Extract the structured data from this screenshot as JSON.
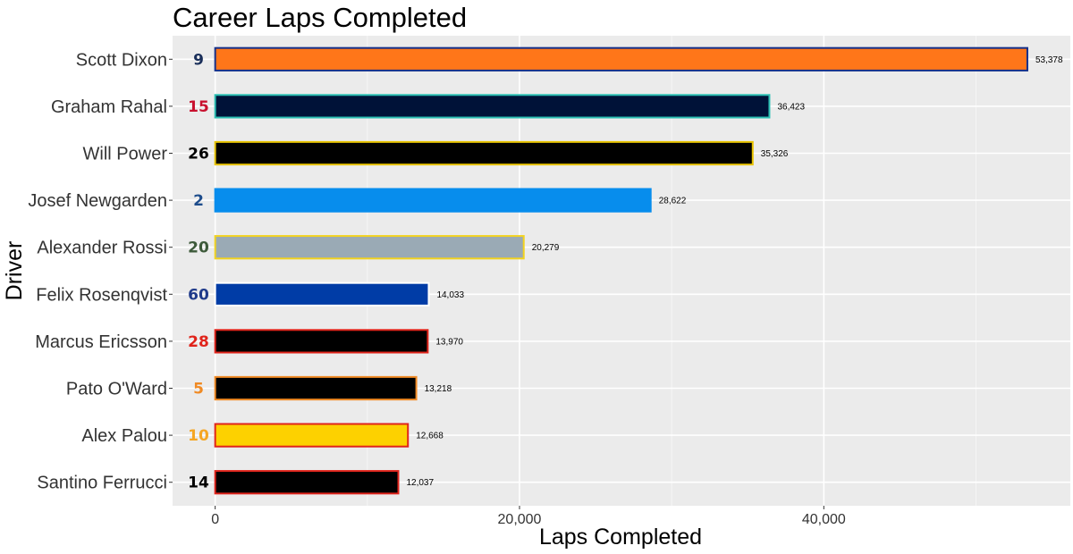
{
  "chart_data": {
    "type": "bar",
    "orientation": "horizontal",
    "title": "Career Laps Completed",
    "xlabel": "Laps Completed",
    "ylabel": "Driver",
    "xlim": [
      -2800,
      56200
    ],
    "x_ticks": [
      0,
      20000,
      40000
    ],
    "x_tick_labels": [
      "0",
      "20,000",
      "40,000"
    ],
    "grid": true,
    "categories": [
      "Scott Dixon",
      "Graham Rahal",
      "Will Power",
      "Josef Newgarden",
      "Alexander Rossi",
      "Felix Rosenqvist",
      "Marcus Ericsson",
      "Pato O'Ward",
      "Alex Palou",
      "Santino Ferrucci"
    ],
    "values": [
      53378,
      36423,
      35326,
      28622,
      20279,
      14033,
      13970,
      13218,
      12668,
      12037
    ],
    "value_labels": [
      "53,378",
      "36,423",
      "35,326",
      "28,622",
      "20,279",
      "14,033",
      "13,970",
      "13,218",
      "12,668",
      "12,037"
    ],
    "car_numbers": [
      "9",
      "15",
      "26",
      "2",
      "20",
      "60",
      "28",
      "5",
      "10",
      "14"
    ],
    "car_number_colors": [
      "#1a2f5a",
      "#c8102e",
      "#000000",
      "#1e4d8c",
      "#3d5a3a",
      "#1f3a8a",
      "#e0241b",
      "#f08a24",
      "#f5a623",
      "#000000"
    ],
    "bar_fill_colors": [
      "#ff7619",
      "#001238",
      "#000000",
      "#078ded",
      "#9aaab5",
      "#003ca6",
      "#000000",
      "#000000",
      "#fdd100",
      "#000000"
    ],
    "bar_outline_colors": [
      "#14308a",
      "#2bbfb3",
      "#e8c300",
      "#078ded",
      "#f2d320",
      "#ffffff",
      "#e0241b",
      "#f08a24",
      "#e0241b",
      "#e0241b"
    ]
  }
}
